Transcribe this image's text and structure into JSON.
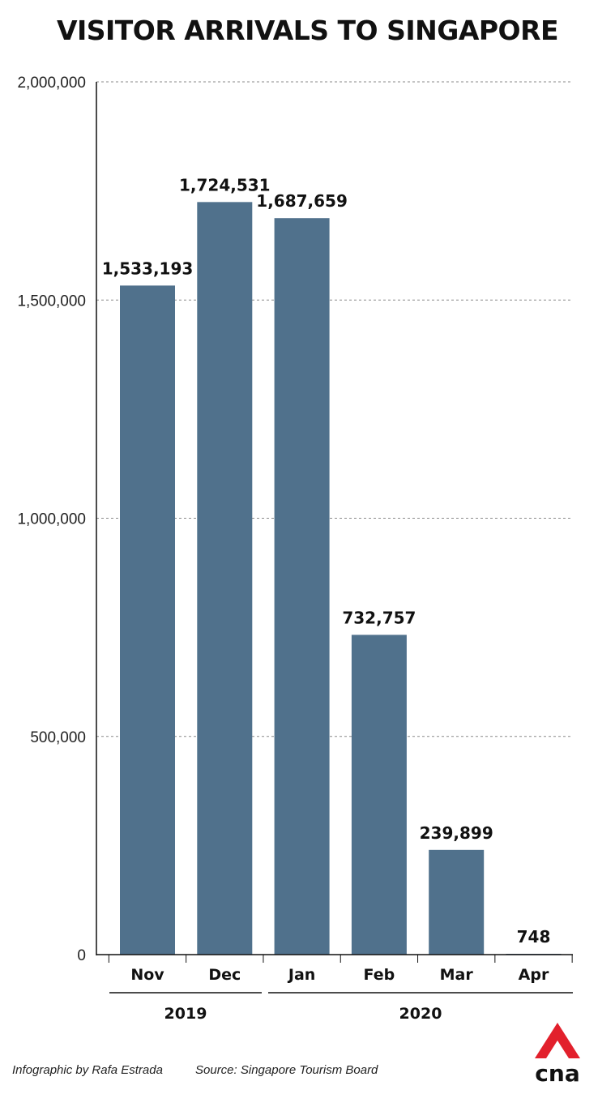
{
  "title": "VISITOR ARRIVALS TO SINGAPORE",
  "chart_data": {
    "type": "bar",
    "title": "VISITOR ARRIVALS TO SINGAPORE",
    "categories": [
      "Nov",
      "Dec",
      "Jan",
      "Feb",
      "Mar",
      "Apr"
    ],
    "values": [
      1533193,
      1724531,
      1687659,
      732757,
      239899,
      748
    ],
    "data_labels": [
      "1,533,193",
      "1,724,531",
      "1,687,659",
      "732,757",
      "239,899",
      "748"
    ],
    "ylim": [
      0,
      2000000
    ],
    "yticks": [
      0,
      500000,
      1000000,
      1500000,
      2000000
    ],
    "ytick_labels": [
      "0",
      "500,000",
      "1,000,000",
      "1,500,000",
      "2,000,000"
    ],
    "groups": [
      {
        "label": "2019",
        "categories": [
          "Nov",
          "Dec"
        ]
      },
      {
        "label": "2020",
        "categories": [
          "Jan",
          "Feb",
          "Mar",
          "Apr"
        ]
      }
    ],
    "grid": true,
    "bar_color": "#50718c"
  },
  "footer": {
    "credit": "Infographic by Rafa Estrada",
    "source": "Source: Singapore Tourism Board"
  },
  "logo": {
    "text": "cna",
    "icon": "cna-logo-icon",
    "color": "#e2202c"
  }
}
